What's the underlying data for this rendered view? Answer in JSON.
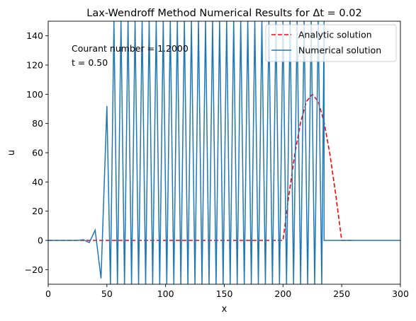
{
  "chart_data": {
    "type": "line",
    "title": "Lax-Wendroff Method Numerical Results for Δt = 0.02",
    "xlabel": "x",
    "ylabel": "u",
    "xlim": [
      0,
      300
    ],
    "ylim": [
      -30,
      150
    ],
    "xticks": [
      0,
      50,
      100,
      150,
      200,
      250,
      300
    ],
    "yticks": [
      -20,
      0,
      20,
      40,
      60,
      80,
      100,
      120,
      140
    ],
    "grid": false,
    "legend_position": "top-right",
    "annotations": [
      "Courant number = 1.2000",
      "t = 0.50"
    ],
    "series": [
      {
        "name": "Analytic solution",
        "style": "dashed",
        "color": "#ff0000",
        "x": [
          0,
          200,
          205,
          210,
          215,
          220,
          225,
          230,
          235,
          240,
          245,
          250,
          255,
          260
        ],
        "y": [
          0,
          0,
          30.9,
          58.8,
          80.9,
          95.1,
          100,
          95.1,
          80.9,
          58.8,
          30.9,
          0,
          0,
          0
        ]
      },
      {
        "name": "Numerical solution",
        "style": "solid",
        "color": "#1f77b4",
        "x": [
          0,
          25,
          30,
          35,
          40,
          45,
          50,
          53,
          56
        ],
        "y": [
          0,
          0,
          0.5,
          -1.5,
          7,
          -26,
          92,
          -30,
          150
        ],
        "oscillation": {
          "x_start": 56,
          "x_end": 235,
          "period": 6,
          "y_high": 150,
          "y_low": -30
        },
        "tail": {
          "x": [
            235,
            300
          ],
          "y": [
            0,
            0
          ]
        }
      }
    ]
  }
}
